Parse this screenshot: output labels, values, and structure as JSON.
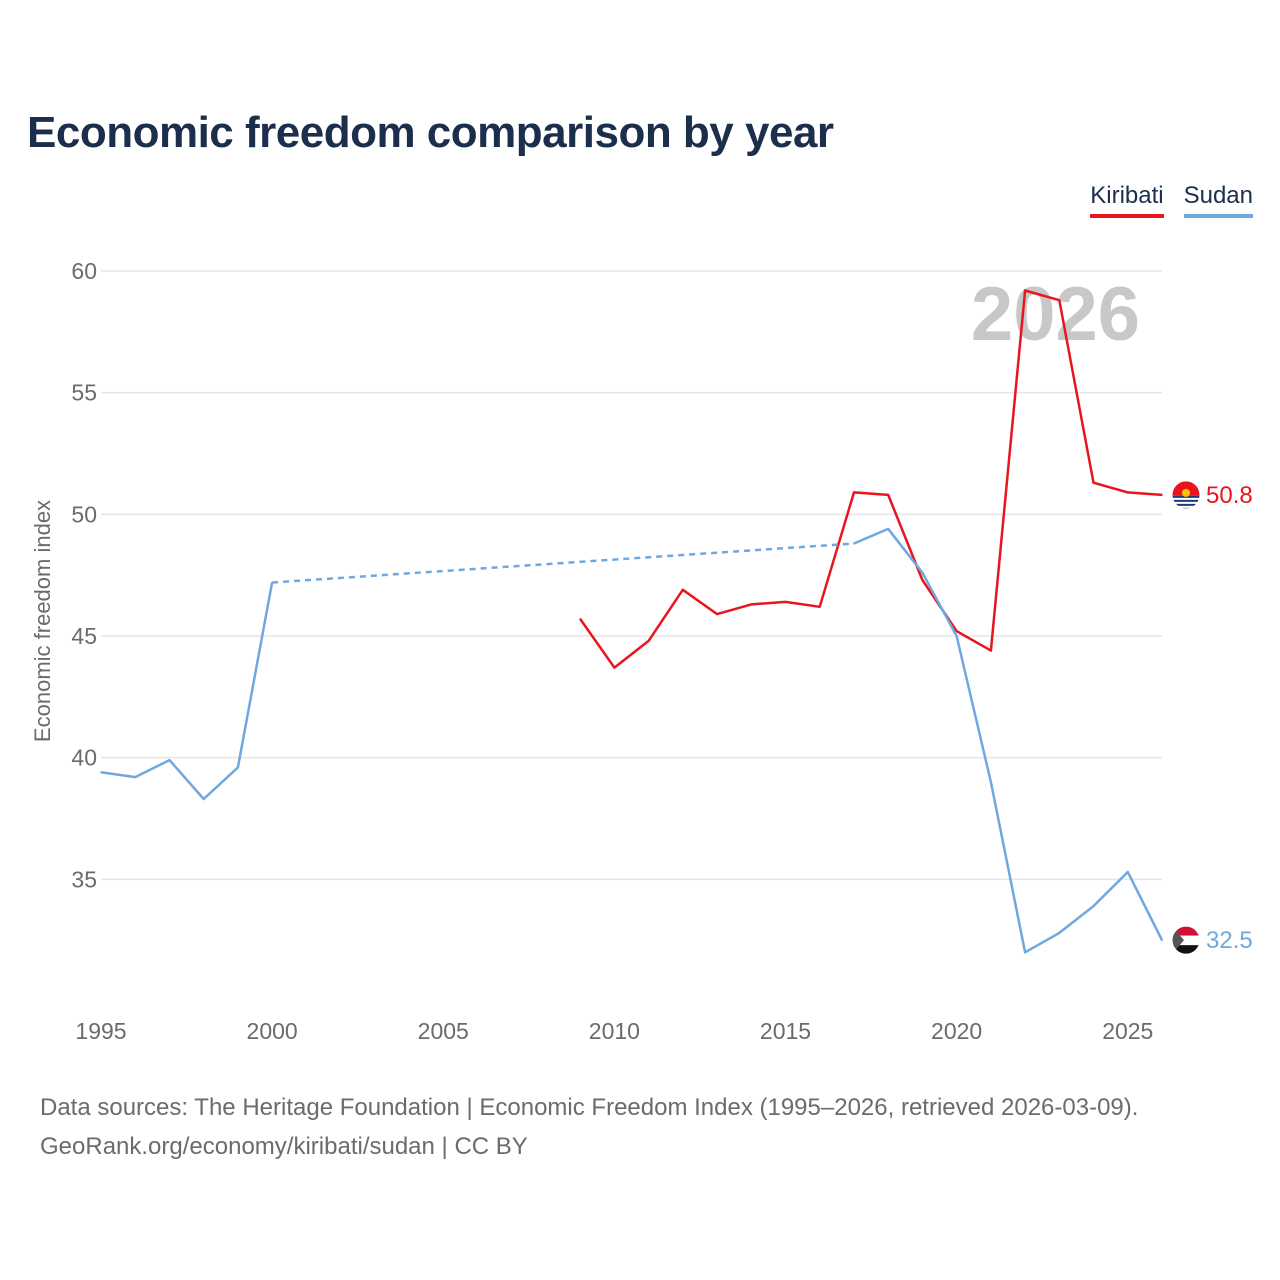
{
  "page": {
    "title": "Economic freedom comparison by year",
    "footer_sources": "Data sources: The Heritage Foundation | Economic Freedom Index (1995–2026, retrieved 2026-03-09).",
    "footer_credit": "GeoRank.org/economy/kiribati/sudan | CC BY"
  },
  "legend": {
    "kiribati": "Kiribati",
    "sudan": "Sudan"
  },
  "colors": {
    "kiribati": "#e8141e",
    "sudan": "#6fa8e0",
    "title": "#1b2e4b",
    "grid": "#e6e6e6",
    "watermark": "#c8c8c8"
  },
  "chart_data": {
    "type": "line",
    "title": "Economic freedom comparison by year",
    "xlabel": "",
    "ylabel": "Economic freedom index",
    "xlim": [
      1995,
      2026
    ],
    "ylim": [
      30,
      60
    ],
    "yticks": [
      35,
      40,
      45,
      50,
      55,
      60
    ],
    "xticks": [
      1995,
      2000,
      2005,
      2010,
      2015,
      2020,
      2025
    ],
    "watermark_year": "2026",
    "series": [
      {
        "key": "kiribati",
        "name": "Kiribati",
        "color": "#e8141e",
        "end_label": "50.8",
        "points": [
          [
            2009,
            45.7
          ],
          [
            2010,
            43.7
          ],
          [
            2011,
            44.8
          ],
          [
            2012,
            46.9
          ],
          [
            2013,
            45.9
          ],
          [
            2014,
            46.3
          ],
          [
            2015,
            46.4
          ],
          [
            2016,
            46.2
          ],
          [
            2017,
            50.9
          ],
          [
            2018,
            50.8
          ],
          [
            2019,
            47.3
          ],
          [
            2020,
            45.2
          ],
          [
            2021,
            44.4
          ],
          [
            2022,
            59.2
          ],
          [
            2023,
            58.8
          ],
          [
            2024,
            51.3
          ],
          [
            2025,
            50.9
          ],
          [
            2026,
            50.8
          ]
        ],
        "gaps": []
      },
      {
        "key": "sudan",
        "name": "Sudan",
        "color": "#6fa8e0",
        "end_label": "32.5",
        "points": [
          [
            1995,
            39.4
          ],
          [
            1996,
            39.2
          ],
          [
            1997,
            39.9
          ],
          [
            1998,
            38.3
          ],
          [
            1999,
            39.6
          ],
          [
            2000,
            47.2
          ],
          [
            2017,
            48.8
          ],
          [
            2018,
            49.4
          ],
          [
            2019,
            47.6
          ],
          [
            2020,
            45.0
          ],
          [
            2021,
            39.0
          ],
          [
            2022,
            32.0
          ],
          [
            2023,
            32.8
          ],
          [
            2024,
            33.9
          ],
          [
            2025,
            35.3
          ],
          [
            2026,
            32.5
          ]
        ],
        "gaps": [
          [
            2000,
            2017
          ]
        ]
      }
    ]
  }
}
